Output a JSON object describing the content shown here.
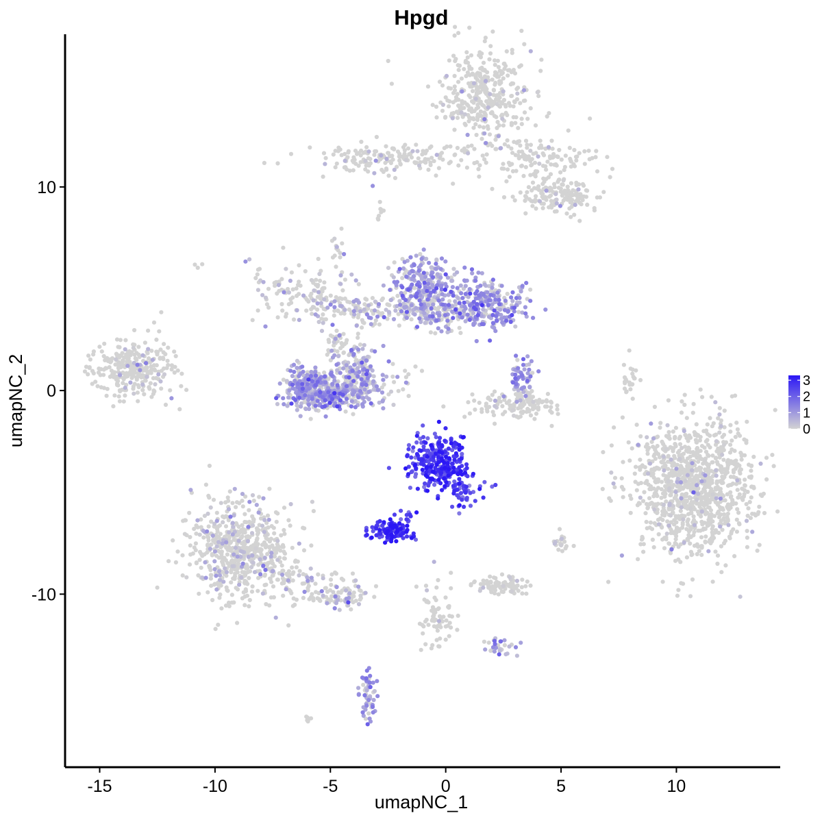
{
  "chart_data": {
    "type": "scatter",
    "title": "Hpgd",
    "xlabel": "umapNC_1",
    "ylabel": "umapNC_2",
    "xlim": [
      -16.5,
      14.5
    ],
    "ylim": [
      -18.5,
      17.5
    ],
    "x_ticks": [
      -15,
      -10,
      -5,
      0,
      5,
      10
    ],
    "x_tick_labels": [
      "-15",
      "-10",
      "-5",
      "0",
      "5",
      "10"
    ],
    "y_ticks": [
      -10,
      0,
      10
    ],
    "y_tick_labels": [
      "-10",
      "0",
      "10"
    ],
    "grid": false,
    "legend": {
      "position": "right",
      "type": "colorbar",
      "min": 0,
      "max": 3.3,
      "tick_values": [
        0,
        1,
        2,
        3
      ],
      "tick_labels": [
        "0",
        "1",
        "2",
        "3"
      ],
      "low_color": "#d3d3d3",
      "high_color": "#2b17f5"
    },
    "clusters": [
      {
        "name": "top-right-upper",
        "cx": 1.7,
        "cy": 14.5,
        "sx": 1.0,
        "sy": 1.2,
        "n": 380,
        "mean_expr": 0.05
      },
      {
        "name": "top-arm-left",
        "cx": -2.2,
        "cy": 11.4,
        "sx": 1.9,
        "sy": 0.35,
        "n": 170,
        "mean_expr": 0.05
      },
      {
        "name": "top-arm-right",
        "cx": 4.1,
        "cy": 11.3,
        "sx": 1.3,
        "sy": 0.6,
        "n": 130,
        "mean_expr": 0.05
      },
      {
        "name": "top-right-lower",
        "cx": 4.9,
        "cy": 9.6,
        "sx": 0.9,
        "sy": 0.5,
        "n": 150,
        "mean_expr": 0.05
      },
      {
        "name": "left-far",
        "cx": -13.4,
        "cy": 1.1,
        "sx": 0.9,
        "sy": 0.7,
        "n": 290,
        "mean_expr": 0.06
      },
      {
        "name": "mid-left-arm",
        "cx": -6.3,
        "cy": 5.0,
        "sx": 1.3,
        "sy": 0.7,
        "n": 120,
        "mean_expr": 0.25
      },
      {
        "name": "mid-left-branch",
        "cx": -4.2,
        "cy": 4.0,
        "sx": 1.0,
        "sy": 0.35,
        "n": 90,
        "mean_expr": 0.4
      },
      {
        "name": "stem",
        "cx": -4.7,
        "cy": 2.2,
        "sx": 0.25,
        "sy": 0.6,
        "n": 35,
        "mean_expr": 0.1
      },
      {
        "name": "crescent-left",
        "cx": -5.9,
        "cy": 0.2,
        "sx": 0.6,
        "sy": 0.55,
        "n": 230,
        "mean_expr": 0.85
      },
      {
        "name": "crescent-bottom",
        "cx": -4.8,
        "cy": -0.2,
        "sx": 1.0,
        "sy": 0.38,
        "n": 250,
        "mean_expr": 0.8
      },
      {
        "name": "crescent-right",
        "cx": -3.9,
        "cy": 0.8,
        "sx": 0.5,
        "sy": 0.7,
        "n": 180,
        "mean_expr": 0.75
      },
      {
        "name": "mid-center-left",
        "cx": -1.0,
        "cy": 5.2,
        "sx": 0.65,
        "sy": 0.7,
        "n": 230,
        "mean_expr": 0.9
      },
      {
        "name": "mid-center-bottom",
        "cx": -0.7,
        "cy": 3.9,
        "sx": 1.3,
        "sy": 0.45,
        "n": 200,
        "mean_expr": 0.6
      },
      {
        "name": "mid-center-right",
        "cx": 1.7,
        "cy": 4.3,
        "sx": 0.9,
        "sy": 0.6,
        "n": 260,
        "mean_expr": 0.95
      },
      {
        "name": "small-arc",
        "cx": 3.3,
        "cy": 0.7,
        "sx": 0.3,
        "sy": 0.5,
        "n": 60,
        "mean_expr": 1.0
      },
      {
        "name": "bowl-bottom",
        "cx": 3.0,
        "cy": -0.7,
        "sx": 1.0,
        "sy": 0.35,
        "n": 130,
        "mean_expr": 0.12
      },
      {
        "name": "right-large",
        "cx": 10.8,
        "cy": -4.8,
        "sx": 1.3,
        "sy": 1.65,
        "n": 1100,
        "mean_expr": 0.04
      },
      {
        "name": "hotspot-main",
        "cx": -0.3,
        "cy": -3.5,
        "sx": 0.65,
        "sy": 0.7,
        "n": 300,
        "mean_expr": 2.6
      },
      {
        "name": "hotspot-tail",
        "cx": 0.9,
        "cy": -5.0,
        "sx": 0.35,
        "sy": 0.4,
        "n": 40,
        "mean_expr": 2.4
      },
      {
        "name": "hotspot-small",
        "cx": -2.4,
        "cy": -6.9,
        "sx": 0.4,
        "sy": 0.25,
        "n": 110,
        "mean_expr": 2.7
      },
      {
        "name": "hotspot-link",
        "cx": -1.7,
        "cy": -6.3,
        "sx": 0.25,
        "sy": 0.35,
        "n": 15,
        "mean_expr": 2.5
      },
      {
        "name": "bottom-left-large",
        "cx": -8.9,
        "cy": -7.8,
        "sx": 1.1,
        "sy": 1.2,
        "n": 650,
        "mean_expr": 0.22
      },
      {
        "name": "bottom-left-arm",
        "cx": -5.7,
        "cy": -9.7,
        "sx": 1.2,
        "sy": 0.45,
        "n": 100,
        "mean_expr": 0.35
      },
      {
        "name": "bottom-left-tip",
        "cx": -4.4,
        "cy": -10.2,
        "sx": 0.45,
        "sy": 0.2,
        "n": 40,
        "mean_expr": 0.5
      },
      {
        "name": "bottom-mid-small",
        "cx": 2.4,
        "cy": -9.6,
        "sx": 0.6,
        "sy": 0.25,
        "n": 85,
        "mean_expr": 0.05
      },
      {
        "name": "bottom-center-streak",
        "cx": -0.4,
        "cy": -11.0,
        "sx": 0.35,
        "sy": 0.9,
        "n": 70,
        "mean_expr": 0.1
      },
      {
        "name": "bottom-right-streak",
        "cx": 2.2,
        "cy": -12.6,
        "sx": 0.35,
        "sy": 0.25,
        "n": 30,
        "mean_expr": 0.9
      },
      {
        "name": "bottom-low",
        "cx": -3.4,
        "cy": -15.0,
        "sx": 0.2,
        "sy": 0.7,
        "n": 55,
        "mean_expr": 1.0
      },
      {
        "name": "small-right-sliver",
        "cx": 8.0,
        "cy": 0.3,
        "sx": 0.18,
        "sy": 0.6,
        "n": 25,
        "mean_expr": 0.0
      },
      {
        "name": "small-right-mid",
        "cx": 5.0,
        "cy": -7.4,
        "sx": 0.25,
        "sy": 0.3,
        "n": 20,
        "mean_expr": 0.1
      },
      {
        "name": "small-top-dash",
        "cx": -2.8,
        "cy": 8.8,
        "sx": 0.15,
        "sy": 0.2,
        "n": 8,
        "mean_expr": 0.0
      },
      {
        "name": "small-mid-dash",
        "cx": -1.8,
        "cy": 0.8,
        "sx": 0.4,
        "sy": 0.4,
        "n": 14,
        "mean_expr": 0.2
      },
      {
        "name": "small-bottom-dash",
        "cx": -6.0,
        "cy": -16.2,
        "sx": 0.15,
        "sy": 0.1,
        "n": 6,
        "mean_expr": 0.0
      },
      {
        "name": "small-left-dot",
        "cx": -10.7,
        "cy": 6.1,
        "sx": 0.1,
        "sy": 0.1,
        "n": 3,
        "mean_expr": 0.0
      },
      {
        "name": "small-upper-strand",
        "cx": -4.7,
        "cy": 7.0,
        "sx": 0.2,
        "sy": 0.5,
        "n": 12,
        "mean_expr": 0.1
      }
    ]
  }
}
